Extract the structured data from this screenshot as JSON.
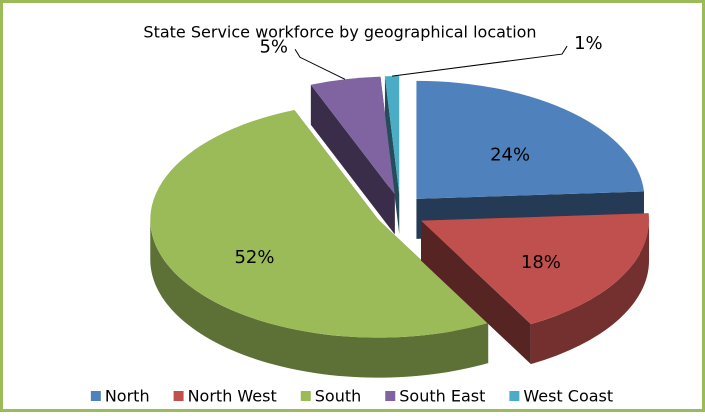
{
  "chart_data": {
    "type": "pie3d",
    "title": "State Service workforce by geographical location",
    "categories": [
      "North",
      "North West",
      "South",
      "South East",
      "West Coast"
    ],
    "values": [
      24,
      18,
      52,
      5,
      1
    ],
    "value_labels": [
      "24%",
      "18%",
      "52%",
      "5%",
      "1%"
    ],
    "colors": [
      "#4f81bd",
      "#c0504d",
      "#9bbb59",
      "#8064a2",
      "#4bacc6"
    ],
    "legend": "bottom"
  }
}
